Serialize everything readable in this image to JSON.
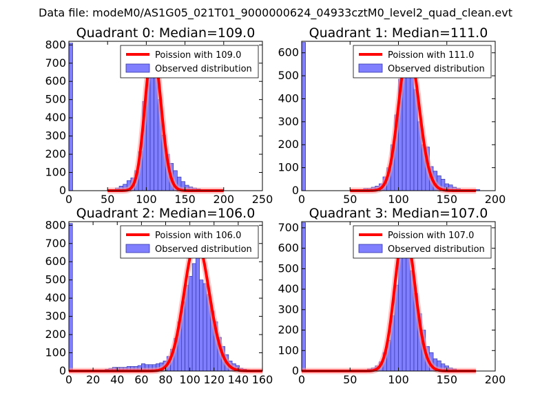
{
  "figure": {
    "suptitle": "Data file: modeM0/AS1G05_021T01_9000000624_04933cztM0_level2_quad_clean.evt"
  },
  "colors": {
    "bar_fill": "#8080ff",
    "bar_edge": "#3333aa",
    "curve": "#ff0000",
    "curve_glow": "#ff9999"
  },
  "legend_labels": {
    "observed": "Observed distribution"
  },
  "chart_data": [
    {
      "type": "bar",
      "title": "Quadrant 0: Median=109.0",
      "median": 109.0,
      "poisson_label": "Poission with 109.0",
      "xlim": [
        0,
        250
      ],
      "ylim": [
        0,
        820
      ],
      "xticks": [
        "0",
        "50",
        "100",
        "150",
        "200",
        "250"
      ],
      "yticks": [
        "0",
        "100",
        "200",
        "300",
        "400",
        "500",
        "600",
        "700",
        "800"
      ],
      "bin_width": 5,
      "bin_starts": [
        0,
        5,
        10,
        15,
        20,
        25,
        30,
        35,
        40,
        45,
        50,
        55,
        60,
        65,
        70,
        75,
        80,
        85,
        90,
        95,
        100,
        105,
        110,
        115,
        120,
        125,
        130,
        135,
        140,
        145,
        150,
        155,
        160,
        165,
        170,
        175,
        180,
        185,
        190,
        195
      ],
      "values": [
        810,
        0,
        0,
        0,
        0,
        0,
        0,
        0,
        0,
        0,
        0,
        5,
        15,
        25,
        35,
        55,
        70,
        110,
        215,
        490,
        700,
        775,
        640,
        500,
        305,
        200,
        150,
        110,
        75,
        50,
        30,
        20,
        15,
        10,
        5,
        0,
        0,
        0,
        0,
        0
      ],
      "poisson_range": [
        50,
        200
      ]
    },
    {
      "type": "bar",
      "title": "Quadrant 1: Median=111.0",
      "median": 111.0,
      "poisson_label": "Poission with 111.0",
      "xlim": [
        0,
        200
      ],
      "ylim": [
        0,
        650
      ],
      "xticks": [
        "0",
        "50",
        "100",
        "150",
        "200"
      ],
      "yticks": [
        "0",
        "100",
        "200",
        "300",
        "400",
        "500",
        "600"
      ],
      "bin_width": 4,
      "bin_starts": [
        0,
        4,
        8,
        12,
        16,
        20,
        24,
        28,
        32,
        36,
        40,
        44,
        48,
        52,
        56,
        60,
        64,
        68,
        72,
        76,
        80,
        84,
        88,
        92,
        96,
        100,
        104,
        108,
        112,
        116,
        120,
        124,
        128,
        132,
        136,
        140,
        144,
        148,
        152,
        156,
        160,
        164,
        168,
        172,
        176,
        180,
        184,
        188,
        192,
        196
      ],
      "values": [
        645,
        0,
        0,
        0,
        0,
        0,
        0,
        0,
        0,
        0,
        0,
        0,
        0,
        0,
        0,
        5,
        10,
        10,
        15,
        20,
        30,
        60,
        100,
        200,
        330,
        485,
        620,
        595,
        495,
        440,
        300,
        200,
        190,
        105,
        85,
        65,
        50,
        30,
        25,
        15,
        10,
        5,
        0,
        5,
        0,
        5,
        0,
        0,
        0,
        0
      ],
      "poisson_range": [
        50,
        180
      ]
    },
    {
      "type": "bar",
      "title": "Quadrant 2: Median=106.0",
      "median": 106.0,
      "poisson_label": "Poission with 106.0",
      "xlim": [
        0,
        160
      ],
      "ylim": [
        0,
        820
      ],
      "xticks": [
        "0",
        "20",
        "40",
        "60",
        "80",
        "100",
        "120",
        "140",
        "160"
      ],
      "yticks": [
        "0",
        "100",
        "200",
        "300",
        "400",
        "500",
        "600",
        "700",
        "800"
      ],
      "bin_width": 3,
      "bin_starts": [
        0,
        3,
        6,
        9,
        12,
        15,
        18,
        21,
        24,
        27,
        30,
        33,
        36,
        39,
        42,
        45,
        48,
        51,
        54,
        57,
        60,
        63,
        66,
        69,
        72,
        75,
        78,
        81,
        84,
        87,
        90,
        93,
        96,
        99,
        102,
        105,
        108,
        111,
        114,
        117,
        120,
        123,
        126,
        129,
        132,
        135,
        138,
        141,
        144,
        147,
        150,
        153,
        156
      ],
      "values": [
        810,
        0,
        0,
        0,
        0,
        0,
        0,
        0,
        0,
        5,
        10,
        15,
        20,
        20,
        20,
        20,
        25,
        25,
        25,
        30,
        40,
        35,
        35,
        35,
        40,
        45,
        55,
        80,
        120,
        180,
        270,
        380,
        470,
        520,
        590,
        640,
        500,
        480,
        420,
        330,
        270,
        185,
        135,
        90,
        55,
        40,
        30,
        15,
        10,
        5,
        3,
        2,
        0
      ],
      "poisson_range": [
        0,
        160
      ]
    },
    {
      "type": "bar",
      "title": "Quadrant 3: Median=107.0",
      "median": 107.0,
      "poisson_label": "Poission with 107.0",
      "xlim": [
        0,
        200
      ],
      "ylim": [
        0,
        730
      ],
      "xticks": [
        "0",
        "50",
        "100",
        "150",
        "200"
      ],
      "yticks": [
        "0",
        "100",
        "200",
        "300",
        "400",
        "500",
        "600",
        "700"
      ],
      "bin_width": 4,
      "bin_starts": [
        0,
        4,
        8,
        12,
        16,
        20,
        24,
        28,
        32,
        36,
        40,
        44,
        48,
        52,
        56,
        60,
        64,
        68,
        72,
        76,
        80,
        84,
        88,
        92,
        96,
        100,
        104,
        108,
        112,
        116,
        120,
        124,
        128,
        132,
        136,
        140,
        144,
        148,
        152,
        156,
        160,
        164,
        168,
        172,
        176,
        180,
        184,
        188,
        192,
        196
      ],
      "values": [
        725,
        0,
        0,
        0,
        0,
        0,
        0,
        0,
        0,
        0,
        0,
        0,
        0,
        0,
        0,
        5,
        5,
        10,
        15,
        25,
        45,
        90,
        150,
        270,
        420,
        600,
        690,
        660,
        490,
        380,
        280,
        200,
        120,
        90,
        60,
        50,
        35,
        25,
        15,
        10,
        5,
        0,
        0,
        0,
        0,
        0,
        0,
        0,
        0,
        0
      ],
      "poisson_range": [
        0,
        180
      ]
    }
  ]
}
